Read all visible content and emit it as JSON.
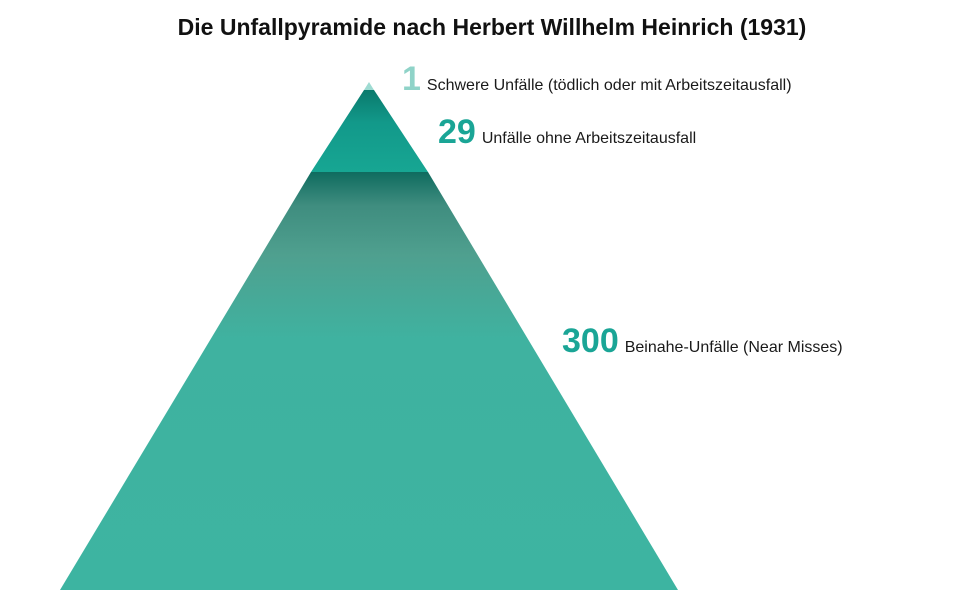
{
  "title": "Die Unfallpyramide nach Herbert Willhelm Heinrich (1931)",
  "levels": [
    {
      "number": "1",
      "label": "Schwere Unfälle (tödlich oder mit Arbeitszeitausfall)"
    },
    {
      "number": "29",
      "label": "Unfälle ohne Arbeitszeitausfall"
    },
    {
      "number": "300",
      "label": "Beinahe-Unfälle (Near Misses)"
    }
  ],
  "colors": {
    "base": "#3db4a1",
    "middle": "#14a592",
    "top": "#9edbd2",
    "number": "#1aa596"
  }
}
